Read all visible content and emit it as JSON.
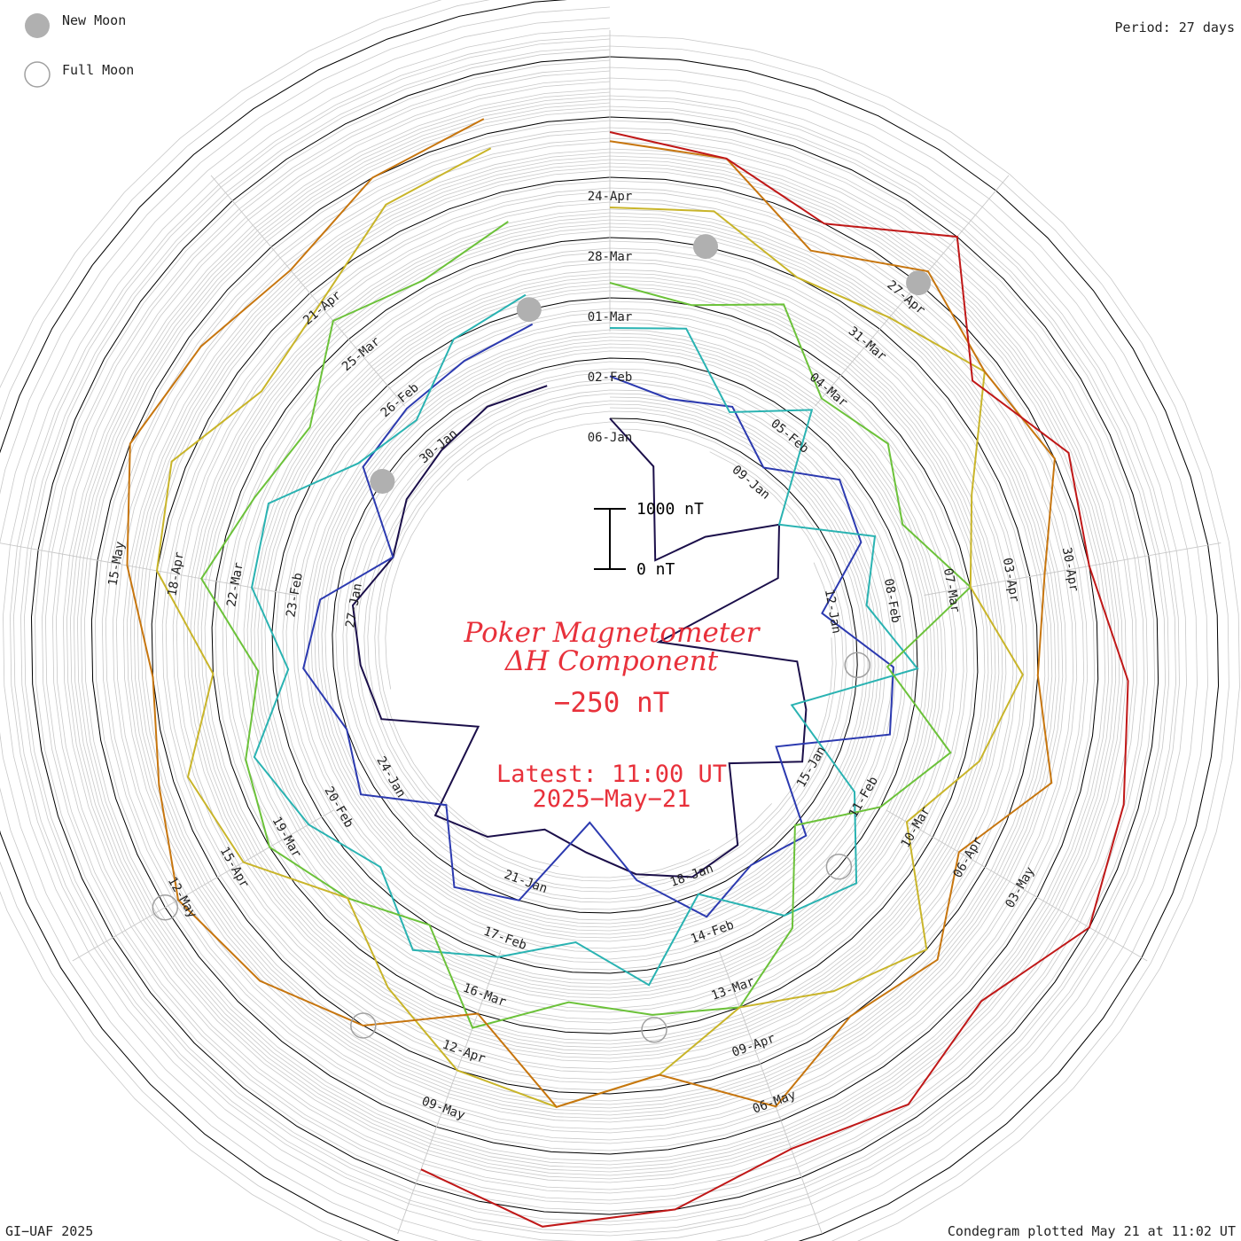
{
  "header": {
    "legend": [
      {
        "label": "New Moon",
        "style": "filled"
      },
      {
        "label": "Full Moon",
        "style": "open"
      }
    ],
    "period": "Period: 27 days"
  },
  "center": {
    "title_line1": "Poker Magnetometer",
    "title_line2": "ΔH Component",
    "value": "−250 nT",
    "latest_line1": "Latest: 11:00 UT",
    "latest_line2": "2025−May−21",
    "scale_top": "1000 nT",
    "scale_bottom": "0 nT"
  },
  "footer": {
    "left": "GI−UAF 2025",
    "right": "Condegram plotted May 21 at 11:02 UT"
  },
  "colors": {
    "accent_text": "#e8313b",
    "grid": "#c8c8c8",
    "moon_fill": "#b0b0b0",
    "series": [
      "#1b0f4a",
      "#2c3ab0",
      "#2ab3b2",
      "#6cc23a",
      "#c9b52a",
      "#c7760f",
      "#c01818"
    ]
  },
  "chart_data": {
    "type": "line",
    "subtype": "spiral condegram",
    "period_days": 27,
    "start_date": "2025-01-06",
    "latest": "2025-05-21 11:00 UT",
    "latest_value_nT": -250,
    "scale_nT": [
      0,
      1000
    ],
    "date_labels": [
      "06-Jan",
      "09-Jan",
      "12-Jan",
      "15-Jan",
      "18-Jan",
      "21-Jan",
      "24-Jan",
      "27-Jan",
      "30-Jan",
      "02-Feb",
      "05-Feb",
      "08-Feb",
      "11-Feb",
      "14-Feb",
      "17-Feb",
      "20-Feb",
      "23-Feb",
      "26-Feb",
      "01-Mar",
      "04-Mar",
      "07-Mar",
      "10-Mar",
      "13-Mar",
      "16-Mar",
      "19-Mar",
      "22-Mar",
      "25-Mar",
      "28-Mar",
      "31-Mar",
      "03-Apr",
      "06-Apr",
      "09-Apr",
      "12-Apr",
      "15-Apr",
      "18-Apr",
      "21-Apr",
      "24-Apr",
      "27-Apr",
      "30-Apr",
      "03-May",
      "06-May",
      "09-May",
      "12-May",
      "15-May"
    ],
    "new_moons": [
      "2025-01-29",
      "2025-02-28",
      "2025-03-29",
      "2025-04-27"
    ],
    "full_moons": [
      "2025-01-13",
      "2025-02-12",
      "2025-03-14",
      "2025-04-13",
      "2025-05-12"
    ],
    "series": [
      {
        "values": [
          0,
          -150,
          -450,
          -300,
          -100,
          -200,
          -650,
          -200,
          -150,
          -100,
          -300,
          -80,
          -60,
          -120,
          -200,
          -250,
          -150,
          -100,
          -400,
          -120,
          -90,
          -60,
          -150,
          -100,
          -80,
          -50,
          -60
        ]
      },
      {
        "values": [
          -60,
          -120,
          -80,
          -200,
          -50,
          -100,
          -300,
          -80,
          -60,
          -400,
          -150,
          -200,
          -120,
          -300,
          -500,
          -200,
          -150,
          -350,
          -150,
          -200,
          -100,
          -150,
          -350,
          -120,
          -100,
          -80,
          -50
        ]
      },
      {
        "values": [
          -100,
          -80,
          -300,
          -150,
          -500,
          -250,
          -350,
          -200,
          -600,
          -300,
          -120,
          -200,
          -400,
          -150,
          -300,
          -200,
          -100,
          -250,
          -150,
          -80,
          -250,
          -120,
          -100,
          -300,
          -350,
          -200,
          -150
        ]
      },
      {
        "values": [
          -150,
          -200,
          -100,
          -300,
          -250,
          -350,
          -200,
          -500,
          -250,
          -400,
          -600,
          -350,
          -200,
          -250,
          -300,
          -150,
          -400,
          -300,
          -200,
          -250,
          -350,
          -150,
          -250,
          -300,
          -120,
          -180,
          -100
        ]
      },
      {
        "values": [
          -100,
          -80,
          -200,
          -150,
          -50,
          -300,
          -400,
          -250,
          -350,
          -500,
          -200,
          -300,
          -400,
          -250,
          -150,
          -200,
          -350,
          -500,
          -300,
          -250,
          -400,
          -200,
          -150,
          -300,
          -250,
          -100,
          -50
        ]
      },
      {
        "values": [
          -80,
          -100,
          -300,
          -150,
          -250,
          -200,
          -350,
          -400,
          -300,
          -500,
          -350,
          -400,
          -250,
          -450,
          -350,
          -600,
          -400,
          -300,
          -250,
          -350,
          -400,
          -300,
          -200,
          -250,
          -300,
          -200,
          -150
        ]
      },
      {
        "values": [
          -250,
          -300,
          -400,
          -200,
          -500,
          -350,
          -400,
          -300,
          -250,
          -200,
          -350,
          -250,
          -300,
          -200,
          -150,
          -250
        ]
      }
    ]
  }
}
